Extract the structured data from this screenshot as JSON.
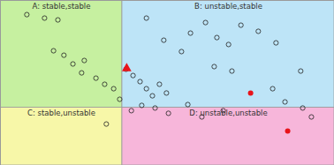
{
  "chart_data": {
    "type": "scatter",
    "xlim": [
      0,
      100
    ],
    "ylim": [
      0,
      100
    ],
    "tick_labels": false,
    "grid": false,
    "regions": [
      {
        "label": "A: stable,stable",
        "color": "#c6f0a0",
        "x": [
          0,
          36.5
        ],
        "y": [
          35,
          100
        ]
      },
      {
        "label": "B: unstable,stable",
        "color": "#bde4f7",
        "x": [
          36.5,
          100
        ],
        "y": [
          35,
          100
        ]
      },
      {
        "label": "C: stable,unstable",
        "color": "#f7f7a8",
        "x": [
          0,
          36.5
        ],
        "y": [
          0,
          35
        ]
      },
      {
        "label": "D: unstable,unstable",
        "color": "#f7b6da",
        "x": [
          36.5,
          100
        ],
        "y": [
          0,
          35
        ]
      }
    ],
    "series": [
      {
        "color": "#222222",
        "marker": "circle_open",
        "x": [
          7.9,
          13.2,
          17.2,
          15.9,
          19.0,
          21.7,
          25.1,
          24.3,
          28.6,
          31.2,
          33.9,
          35.7,
          37.6,
          39.7,
          41.8,
          43.7,
          45.5,
          47.6,
          49.7,
          42.3,
          46.3,
          50.3,
          39.2,
          43.7,
          48.9,
          54.2,
          56.9,
          61.4,
          64.8,
          68.3,
          72.0,
          64.0,
          69.3,
          56.1,
          60.3,
          66.7,
          77.2,
          82.5,
          81.5,
          85.2,
          90.5,
          93.1,
          89.9,
          31.7
        ],
        "y": [
          91.4,
          89.3,
          88.2,
          69.5,
          66.8,
          61.5,
          63.6,
          56.1,
          52.9,
          49.2,
          46.5,
          40.1,
          58.3,
          54.5,
          50.8,
          46.5,
          42.2,
          49.2,
          43.9,
          36.4,
          34.8,
          31.6,
          33.2,
          89.3,
          75.9,
          69.0,
          80.2,
          86.6,
          77.5,
          73.3,
          85.0,
          59.9,
          57.2,
          36.9,
          29.4,
          33.2,
          81.3,
          74.3,
          46.5,
          38.5,
          34.8,
          29.4,
          57.2,
          25.1
        ]
      },
      {
        "color": "#e8141a",
        "marker": "triangle",
        "x": [
          37.8
        ],
        "y": [
          58.8
        ]
      },
      {
        "color": "#e8141a",
        "marker": "circle",
        "x": [
          74.9,
          86.0
        ],
        "y": [
          43.9,
          20.9
        ]
      }
    ]
  }
}
